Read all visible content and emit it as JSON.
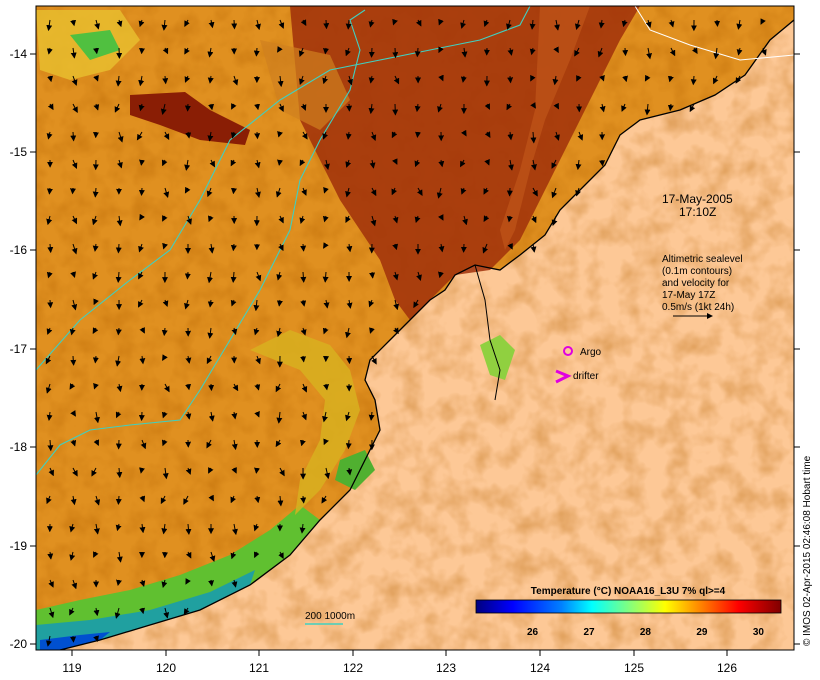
{
  "map": {
    "lon_ticks": [
      "119",
      "120",
      "121",
      "122",
      "123",
      "124",
      "125",
      "126"
    ],
    "lat_ticks": [
      "-14",
      "-15",
      "-16",
      "-17",
      "-18",
      "-19",
      "-20"
    ],
    "timestamp_line1": "17-May-2005",
    "timestamp_line2": "17:10Z",
    "altimetry_lines": [
      "Altimetric sealevel",
      "(0.1m contours)",
      "and velocity for",
      "17-May 17Z",
      "0.5m/s (1kt 24h)"
    ],
    "legend_argo": "Argo",
    "legend_drifter": "drifter",
    "bathymetry_label": "200  1000m",
    "credit": "© IMOS 02-Apr-2015 02:46:08 Hobart time"
  },
  "colorbar": {
    "title": "Temperature (°C) NOAA16_L3U 7% ql>=4",
    "ticks": [
      "26",
      "27",
      "28",
      "29",
      "30"
    ],
    "range": [
      25.0,
      30.4
    ],
    "colors": [
      "#00007f",
      "#0000ff",
      "#0080ff",
      "#00ffff",
      "#80ff80",
      "#ffff00",
      "#ff8000",
      "#ff0000",
      "#7f0000"
    ]
  },
  "colors": {
    "land": "#fdc896",
    "contour": "#40d0c0",
    "argo_marker": "#e000e0",
    "drifter_marker": "#e000e0"
  }
}
